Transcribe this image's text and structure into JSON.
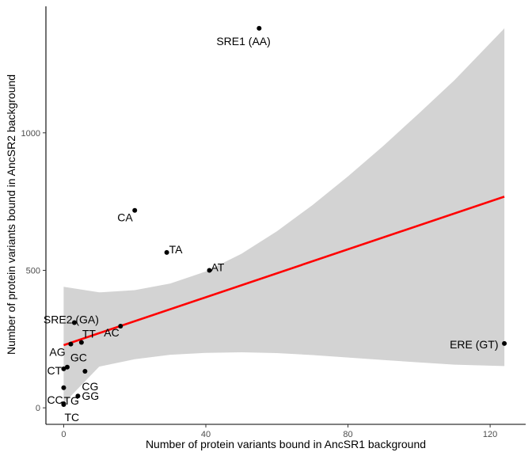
{
  "chart_data": {
    "type": "scatter",
    "title": "",
    "xlabel": "Number of protein variants bound in AncSR1 background",
    "ylabel": "Number of protein variants bound in AncSR2 background",
    "xlim": [
      -5,
      130
    ],
    "ylim": [
      -60,
      1460
    ],
    "x_ticks": [
      0,
      40,
      80,
      120
    ],
    "y_ticks": [
      0,
      500,
      1000
    ],
    "grid": false,
    "legend": "none",
    "points": [
      {
        "label": "SRE1 (AA)",
        "x": 55,
        "y": 1380
      },
      {
        "label": "CA",
        "x": 20,
        "y": 718
      },
      {
        "label": "TA",
        "x": 29,
        "y": 565
      },
      {
        "label": "AT",
        "x": 41,
        "y": 500
      },
      {
        "label": "SRE2 (GA)",
        "x": 3,
        "y": 310
      },
      {
        "label": "AC",
        "x": 16,
        "y": 297
      },
      {
        "label": "TT",
        "x": 5,
        "y": 238
      },
      {
        "label": "AG",
        "x": 2,
        "y": 232
      },
      {
        "label": "ERE (GT)",
        "x": 124,
        "y": 234
      },
      {
        "label": "GC",
        "x": 1,
        "y": 148
      },
      {
        "label": "CT",
        "x": 0,
        "y": 142
      },
      {
        "label": "CG",
        "x": 6,
        "y": 133
      },
      {
        "label": "TG",
        "x": 0,
        "y": 73
      },
      {
        "label": "GG",
        "x": 4,
        "y": 43
      },
      {
        "label": "CC",
        "x": 0,
        "y": 15
      },
      {
        "label": "TC",
        "x": 0,
        "y": 12
      }
    ],
    "fit_line": {
      "color": "#ff0000",
      "x": [
        0,
        124
      ],
      "y": [
        228,
        768
      ]
    },
    "confidence_band": {
      "color": "#d3d3d3",
      "x": [
        0,
        10,
        20,
        30,
        40,
        50,
        60,
        70,
        80,
        90,
        100,
        110,
        124
      ],
      "upper": [
        440,
        420,
        428,
        452,
        496,
        560,
        642,
        737,
        842,
        953,
        1071,
        1192,
        1380
      ],
      "lower": [
        16,
        150,
        177,
        193,
        200,
        202,
        199,
        192,
        183,
        174,
        165,
        157,
        152
      ]
    },
    "colors": {
      "points": "#000000",
      "axes": "#000000",
      "ticks": "#4d4d4d",
      "background": "#ffffff"
    }
  }
}
